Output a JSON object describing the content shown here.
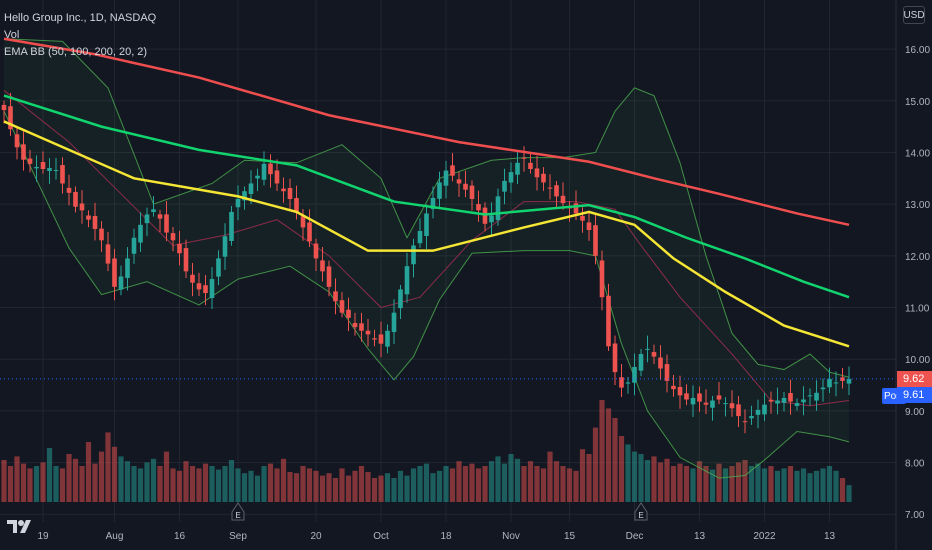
{
  "header": {
    "symbol": "Hello Group Inc., 1D, NASDAQ",
    "vol_label": "Vol",
    "indicator_label": "EMA BB (50, 100, 200, 20, 2)"
  },
  "currency": "USD",
  "price_tags": {
    "last": "9.62",
    "post_label": "Post",
    "post": "9.61"
  },
  "colors": {
    "background": "#131722",
    "grid": "#222631",
    "up": "#26a69a",
    "down": "#ef5350",
    "ema50": "#f5e535",
    "ema100": "#11d46e",
    "ema200": "#ef4e4e",
    "bb_band": "#4caf50",
    "bb_basis": "#8e2c4a",
    "last_tag": "#ef5350",
    "post_tag": "#2962ff"
  },
  "chart_data": {
    "type": "candlestick",
    "y_axis": {
      "labels": [
        "16.00",
        "15.00",
        "14.00",
        "13.00",
        "12.00",
        "11.00",
        "10.00",
        "9.00",
        "8.00",
        "7.00"
      ],
      "ylim": [
        6.85,
        16.95
      ]
    },
    "x_axis": {
      "labels": [
        "19",
        "Aug",
        "16",
        "Sep",
        "20",
        "Oct",
        "18",
        "Nov",
        "15",
        "Dec",
        "13",
        "2022",
        "13"
      ],
      "label_bars": [
        6,
        17,
        27,
        36,
        48,
        58,
        68,
        78,
        87,
        97,
        107,
        117,
        127
      ]
    },
    "bar_count": 131,
    "closes": [
      14.82,
      14.45,
      14.1,
      13.86,
      13.78,
      13.72,
      13.68,
      13.7,
      13.66,
      13.4,
      13.22,
      12.95,
      12.88,
      12.7,
      12.52,
      12.3,
      11.85,
      11.4,
      11.6,
      11.95,
      12.35,
      12.6,
      12.8,
      12.9,
      12.72,
      12.45,
      12.3,
      12.05,
      11.7,
      11.48,
      11.35,
      11.28,
      11.55,
      11.95,
      12.38,
      12.85,
      13.1,
      13.25,
      13.4,
      13.55,
      13.78,
      13.58,
      13.4,
      13.25,
      13.1,
      12.85,
      12.55,
      12.28,
      11.95,
      11.7,
      11.4,
      11.12,
      10.9,
      10.8,
      10.62,
      10.55,
      10.48,
      10.38,
      10.3,
      10.55,
      10.9,
      11.35,
      11.8,
      12.2,
      12.48,
      12.82,
      13.12,
      13.42,
      13.65,
      13.55,
      13.4,
      13.28,
      13.1,
      12.88,
      12.62,
      12.78,
      13.15,
      13.45,
      13.62,
      13.8,
      13.88,
      13.68,
      13.52,
      13.42,
      13.3,
      13.15,
      13.02,
      12.92,
      12.82,
      12.68,
      12.5,
      12.0,
      11.2,
      10.25,
      9.75,
      9.45,
      9.55,
      9.85,
      10.1,
      10.2,
      10.05,
      9.82,
      9.58,
      9.42,
      9.3,
      9.22,
      9.25,
      9.18,
      9.12,
      9.2,
      9.22,
      9.15,
      9.05,
      8.9,
      8.8,
      8.9,
      9.02,
      9.12,
      9.18,
      9.2,
      9.25,
      9.18,
      9.15,
      9.22,
      9.3,
      9.35,
      9.45,
      9.62,
      9.55,
      9.58,
      9.62
    ],
    "volume": [
      0.35,
      0.3,
      0.38,
      0.32,
      0.28,
      0.3,
      0.33,
      0.45,
      0.3,
      0.28,
      0.4,
      0.36,
      0.3,
      0.5,
      0.32,
      0.42,
      0.58,
      0.46,
      0.38,
      0.34,
      0.3,
      0.28,
      0.33,
      0.36,
      0.3,
      0.42,
      0.28,
      0.26,
      0.34,
      0.3,
      0.28,
      0.32,
      0.3,
      0.27,
      0.3,
      0.35,
      0.28,
      0.24,
      0.26,
      0.22,
      0.3,
      0.32,
      0.28,
      0.36,
      0.25,
      0.24,
      0.3,
      0.28,
      0.26,
      0.22,
      0.24,
      0.2,
      0.28,
      0.22,
      0.26,
      0.3,
      0.25,
      0.2,
      0.22,
      0.24,
      0.2,
      0.26,
      0.22,
      0.28,
      0.3,
      0.32,
      0.24,
      0.26,
      0.3,
      0.28,
      0.34,
      0.3,
      0.32,
      0.28,
      0.3,
      0.34,
      0.38,
      0.32,
      0.4,
      0.36,
      0.3,
      0.34,
      0.3,
      0.28,
      0.42,
      0.34,
      0.3,
      0.28,
      0.26,
      0.44,
      0.4,
      0.62,
      0.85,
      0.78,
      0.7,
      0.55,
      0.48,
      0.42,
      0.4,
      0.35,
      0.38,
      0.33,
      0.36,
      0.3,
      0.32,
      0.3,
      0.28,
      0.34,
      0.3,
      0.27,
      0.32,
      0.28,
      0.3,
      0.33,
      0.35,
      0.3,
      0.32,
      0.28,
      0.3,
      0.26,
      0.28,
      0.3,
      0.26,
      0.28,
      0.24,
      0.26,
      0.28,
      0.3,
      0.26,
      0.2,
      0.14
    ],
    "ema50": {
      "x": [
        0,
        20,
        36,
        45,
        56,
        66,
        80,
        90,
        97,
        103,
        111,
        120,
        130
      ],
      "y": [
        14.6,
        13.5,
        13.15,
        12.85,
        12.1,
        12.1,
        12.55,
        12.85,
        12.6,
        11.95,
        11.3,
        10.65,
        10.25
      ]
    },
    "ema100": {
      "x": [
        0,
        15,
        30,
        45,
        60,
        74,
        90,
        97,
        105,
        114,
        123,
        130
      ],
      "y": [
        15.1,
        14.5,
        14.05,
        13.75,
        13.05,
        12.8,
        12.98,
        12.75,
        12.35,
        11.95,
        11.5,
        11.2
      ]
    },
    "ema200": {
      "x": [
        0,
        14,
        30,
        50,
        70,
        90,
        100,
        110,
        122,
        130
      ],
      "y": [
        16.2,
        15.9,
        15.45,
        14.72,
        14.2,
        13.82,
        13.5,
        13.2,
        12.82,
        12.6
      ]
    },
    "bb_upper": {
      "x": [
        0,
        9,
        16,
        23,
        32,
        37,
        45,
        52,
        58,
        62,
        67,
        75,
        80,
        86,
        91,
        94,
        97,
        100,
        104,
        108,
        112,
        116,
        120,
        124,
        127,
        130
      ],
      "y": [
        16.2,
        16.15,
        15.25,
        13.0,
        13.4,
        13.85,
        13.8,
        14.15,
        13.5,
        12.35,
        13.5,
        13.85,
        13.9,
        13.9,
        14.0,
        14.8,
        15.25,
        15.1,
        13.8,
        12.0,
        10.5,
        9.9,
        9.8,
        10.1,
        9.75,
        9.65
      ]
    },
    "bb_lower": {
      "x": [
        0,
        10,
        15,
        22,
        30,
        36,
        44,
        50,
        56,
        60,
        63,
        67,
        72,
        80,
        87,
        91,
        95,
        99,
        104,
        110,
        114,
        117,
        122,
        127,
        130
      ],
      "y": [
        14.8,
        12.15,
        11.25,
        11.5,
        11.05,
        11.55,
        11.8,
        11.3,
        10.2,
        9.6,
        10.05,
        11.15,
        12.05,
        12.1,
        12.1,
        12.0,
        10.3,
        9.0,
        8.1,
        7.7,
        7.75,
        8.05,
        8.6,
        8.5,
        8.4
      ]
    },
    "bb_basis": {
      "x": [
        0,
        10,
        18,
        26,
        34,
        42,
        50,
        58,
        64,
        72,
        80,
        88,
        94,
        98,
        104,
        112,
        118,
        124,
        130
      ],
      "y": [
        15.2,
        14.2,
        13.2,
        12.2,
        12.4,
        12.7,
        12.0,
        11.0,
        11.2,
        12.3,
        13.05,
        13.05,
        12.9,
        12.2,
        11.2,
        10.1,
        9.2,
        9.1,
        9.2
      ]
    }
  }
}
